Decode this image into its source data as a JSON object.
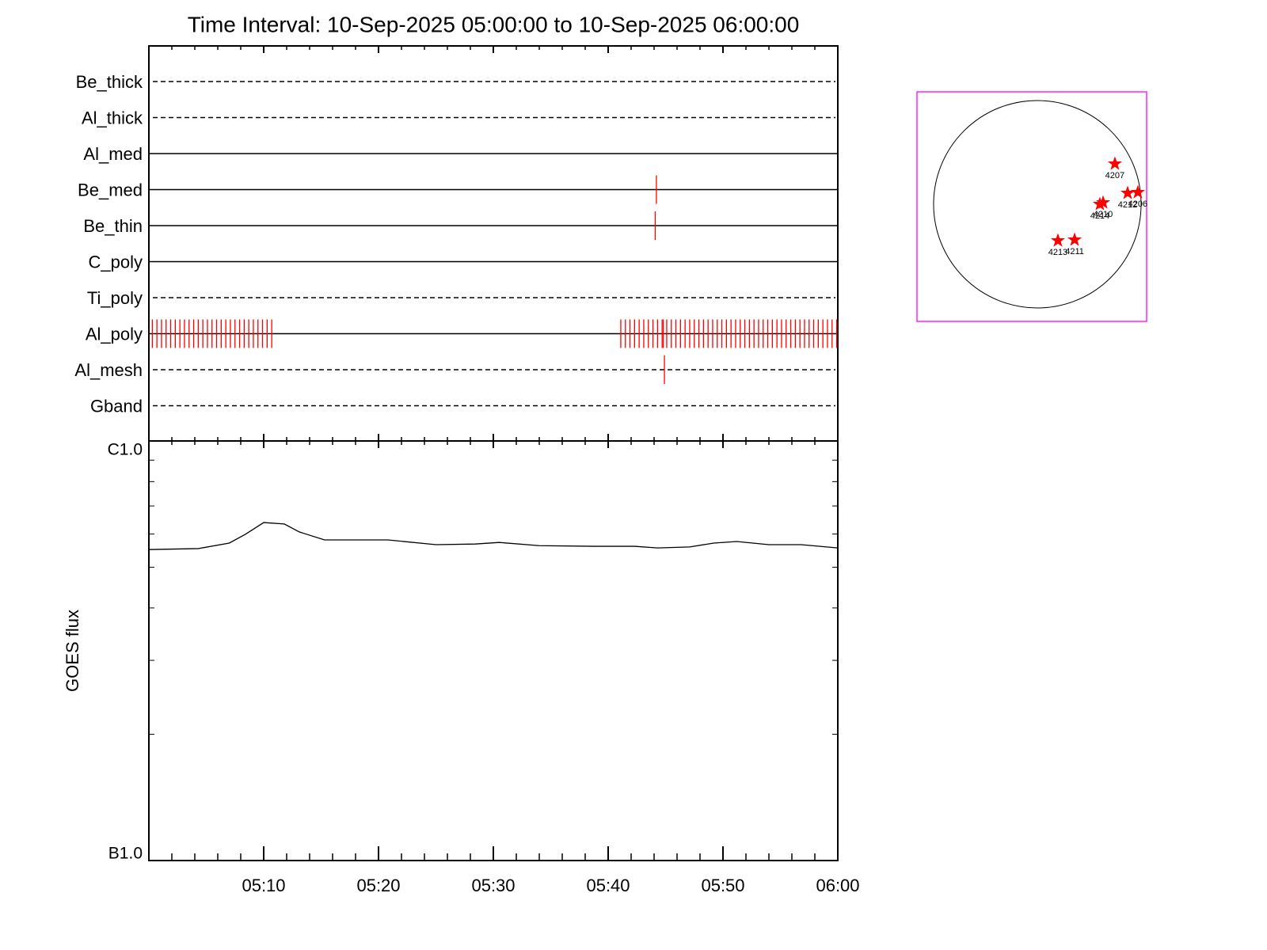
{
  "chart_data": [
    {
      "type": "event",
      "title": "Time Interval: 10-Sep-2025 05:00:00 to 10-Sep-2025 06:00:00",
      "xlim": [
        0,
        60
      ],
      "color": "#ff0000",
      "rows": [
        {
          "name": "Be_thick",
          "style": "dashed",
          "events": []
        },
        {
          "name": "Al_thick",
          "style": "dashed",
          "events": []
        },
        {
          "name": "Al_med",
          "style": "solid",
          "events": []
        },
        {
          "name": "Be_med",
          "style": "solid",
          "events": [
            44.2
          ]
        },
        {
          "name": "Be_thin",
          "style": "solid",
          "events": [
            44.1
          ]
        },
        {
          "name": "C_poly",
          "style": "solid",
          "events": []
        },
        {
          "name": "Ti_poly",
          "style": "dashed",
          "events": []
        },
        {
          "name": "Al_poly",
          "style": "solid",
          "events": [
            0.3,
            0.7,
            1.1,
            1.5,
            1.9,
            2.3,
            2.7,
            3.1,
            3.5,
            3.9,
            4.3,
            4.7,
            5.1,
            5.5,
            5.9,
            6.3,
            6.7,
            7.1,
            7.5,
            7.9,
            8.3,
            8.7,
            9.1,
            9.5,
            9.9,
            10.3,
            10.7,
            41.1,
            41.5,
            41.9,
            42.3,
            42.7,
            43.1,
            43.5,
            43.9,
            44.3,
            44.7,
            44.8,
            45.1,
            45.5,
            45.9,
            46.3,
            46.7,
            47.1,
            47.5,
            47.9,
            48.3,
            48.7,
            49.1,
            49.5,
            49.9,
            50.3,
            50.7,
            51.1,
            51.5,
            51.9,
            52.3,
            52.7,
            53.1,
            53.5,
            53.9,
            54.3,
            54.7,
            55.1,
            55.5,
            55.9,
            56.3,
            56.7,
            57.1,
            57.5,
            57.9,
            58.3,
            58.7,
            59.1,
            59.5,
            59.9
          ]
        },
        {
          "name": "Al_mesh",
          "style": "dashed",
          "events": [
            44.9
          ]
        },
        {
          "name": "Gband",
          "style": "dashed",
          "events": []
        }
      ]
    },
    {
      "type": "line",
      "ylabel": "GOES flux",
      "log_y": true,
      "color": "#000000",
      "x": [
        0,
        4.3,
        7,
        8.4,
        10,
        11.8,
        13.1,
        15.3,
        17.4,
        20.8,
        25,
        28.4,
        30.5,
        34,
        38.8,
        42.3,
        44.3,
        47.1,
        49.2,
        51.2,
        54,
        56.8,
        60
      ],
      "values": [
        5.51e-07,
        5.54e-07,
        5.71e-07,
        5.99e-07,
        6.39e-07,
        6.34e-07,
        6.07e-07,
        5.81e-07,
        5.81e-07,
        5.81e-07,
        5.66e-07,
        5.68e-07,
        5.73e-07,
        5.63e-07,
        5.61e-07,
        5.61e-07,
        5.56e-07,
        5.59e-07,
        5.71e-07,
        5.76e-07,
        5.66e-07,
        5.66e-07,
        5.56e-07
      ],
      "xlim": [
        0,
        60
      ],
      "xticks": [
        {
          "value": 10,
          "label": "05:10"
        },
        {
          "value": 20,
          "label": "05:20"
        },
        {
          "value": 30,
          "label": "05:30"
        },
        {
          "value": 40,
          "label": "05:40"
        },
        {
          "value": 50,
          "label": "05:50"
        },
        {
          "value": 60,
          "label": "06:00"
        }
      ],
      "xminorticks": [
        2,
        4,
        6,
        8,
        12,
        14,
        16,
        18,
        22,
        24,
        26,
        28,
        32,
        34,
        36,
        38,
        42,
        44,
        46,
        48,
        52,
        54,
        56,
        58
      ],
      "ylim": [
        1e-07,
        1e-06
      ],
      "yticks": [
        {
          "value": 1e-06,
          "label": "C1.0"
        },
        {
          "value": 1e-07,
          "label": "B1.0"
        }
      ],
      "yminorticks": [
        2e-07,
        3e-07,
        4e-07,
        5e-07,
        6e-07,
        7e-07,
        8e-07,
        9e-07
      ]
    },
    {
      "type": "scatter",
      "xlim": [
        -1153,
        1047
      ],
      "ylim": [
        -1123,
        1077
      ],
      "solar_radius": 994,
      "box_color": "#ff00ff",
      "color": "#ff0000",
      "points": [
        {
          "name": "4207",
          "x": 743,
          "y": 387
        },
        {
          "name": "4210",
          "x": 630,
          "y": 15
        },
        {
          "name": "4214",
          "x": 599,
          "y": 0
        },
        {
          "name": "4212",
          "x": 865,
          "y": 106
        },
        {
          "name": "4206",
          "x": 963,
          "y": 114
        },
        {
          "name": "4213",
          "x": 197,
          "y": -349
        },
        {
          "name": "4211",
          "x": 357,
          "y": -341
        }
      ]
    }
  ]
}
